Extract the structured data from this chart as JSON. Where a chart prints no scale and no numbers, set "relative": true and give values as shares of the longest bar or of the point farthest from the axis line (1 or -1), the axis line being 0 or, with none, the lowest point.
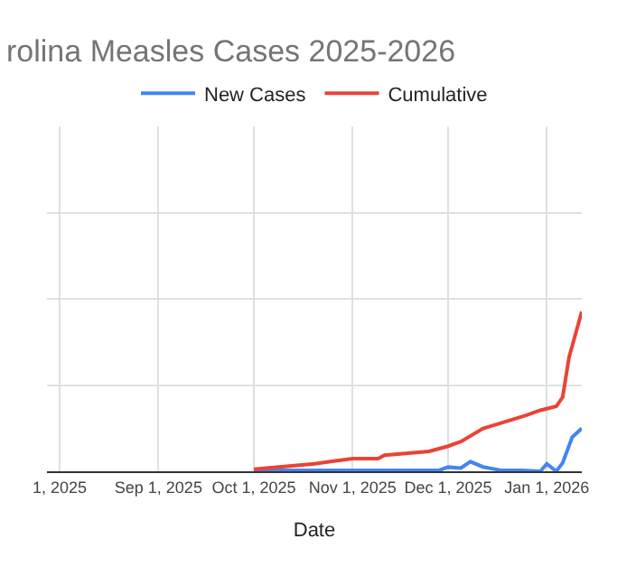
{
  "chart_data": {
    "type": "line",
    "title": "rolina Measles Cases 2025-2026",
    "xlabel": "Date",
    "relative": true,
    "grid": true,
    "legend": "top",
    "marker": "none",
    "line_style": "solid",
    "xlim": [
      "2025-07-28",
      "2026-01-12"
    ],
    "xticks": [
      {
        "value": "2025-08-01",
        "label": "1, 2025"
      },
      {
        "value": "2025-09-01",
        "label": "Sep 1, 2025"
      },
      {
        "value": "2025-10-01",
        "label": "Oct 1, 2025"
      },
      {
        "value": "2025-11-01",
        "label": "Nov 1, 2025"
      },
      {
        "value": "2025-12-01",
        "label": "Dec 1, 2025"
      },
      {
        "value": "2026-01-01",
        "label": "Jan 1, 2026"
      }
    ],
    "series": [
      {
        "name": "New Cases",
        "color": "#4285f4",
        "x": [
          "2025-10-01",
          "2025-11-01",
          "2025-11-28",
          "2025-12-01",
          "2025-12-05",
          "2025-12-08",
          "2025-12-12",
          "2025-12-18",
          "2025-12-24",
          "2025-12-30",
          "2026-01-01",
          "2026-01-04",
          "2026-01-06",
          "2026-01-09",
          "2026-01-12"
        ],
        "values": [
          0.005,
          0.005,
          0.005,
          0.026,
          0.02,
          0.06,
          0.027,
          0.005,
          0.005,
          0,
          0.047,
          0,
          0.053,
          0.214,
          0.268
        ]
      },
      {
        "name": "Cumulative",
        "color": "#ea4335",
        "x": [
          "2025-10-01",
          "2025-10-20",
          "2025-10-26",
          "2025-11-01",
          "2025-11-09",
          "2025-11-11",
          "2025-11-25",
          "2025-12-01",
          "2025-12-05",
          "2025-12-12",
          "2025-12-15",
          "2025-12-25",
          "2025-12-30",
          "2026-01-04",
          "2026-01-06",
          "2026-01-08",
          "2026-01-12"
        ],
        "values": [
          0.013,
          0.047,
          0.064,
          0.079,
          0.079,
          0.1,
          0.125,
          0.157,
          0.186,
          0.268,
          0.286,
          0.347,
          0.382,
          0.407,
          0.465,
          0.714,
          1.0
        ]
      }
    ]
  }
}
